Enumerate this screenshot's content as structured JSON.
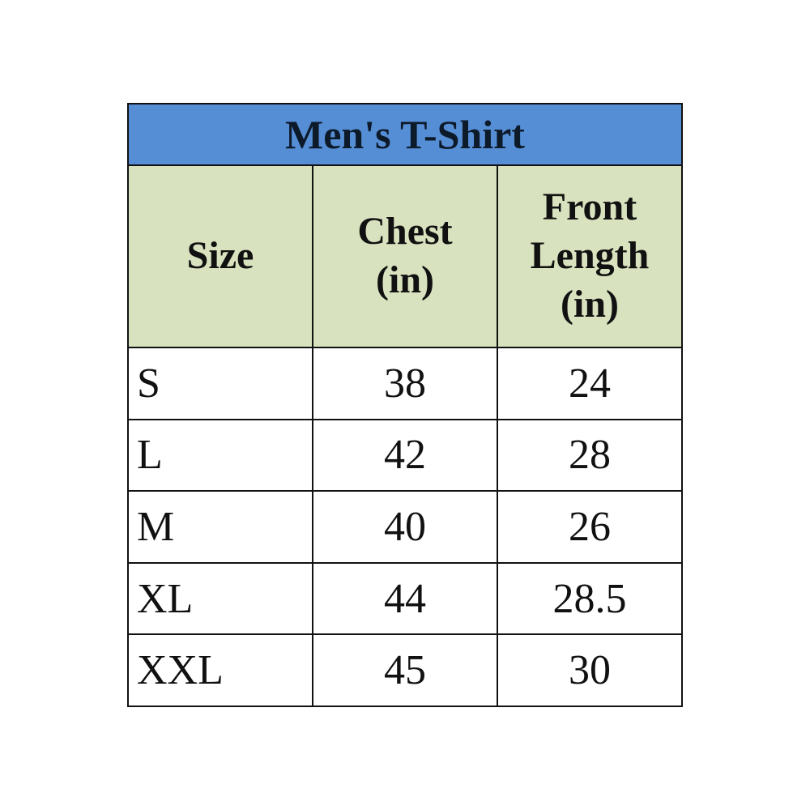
{
  "table": {
    "title": "Men's T-Shirt",
    "headers": [
      "Size",
      "Chest (in)",
      "Front Length (in)"
    ],
    "rows": [
      [
        "S",
        "38",
        "24"
      ],
      [
        "L",
        "42",
        "28"
      ],
      [
        "M",
        "40",
        "26"
      ],
      [
        "XL",
        "44",
        "28.5"
      ],
      [
        "XXL",
        "45",
        "30"
      ]
    ]
  },
  "colors": {
    "title_bg": "#558ED5",
    "header_bg": "#D9E2BE",
    "border": "#111111"
  }
}
